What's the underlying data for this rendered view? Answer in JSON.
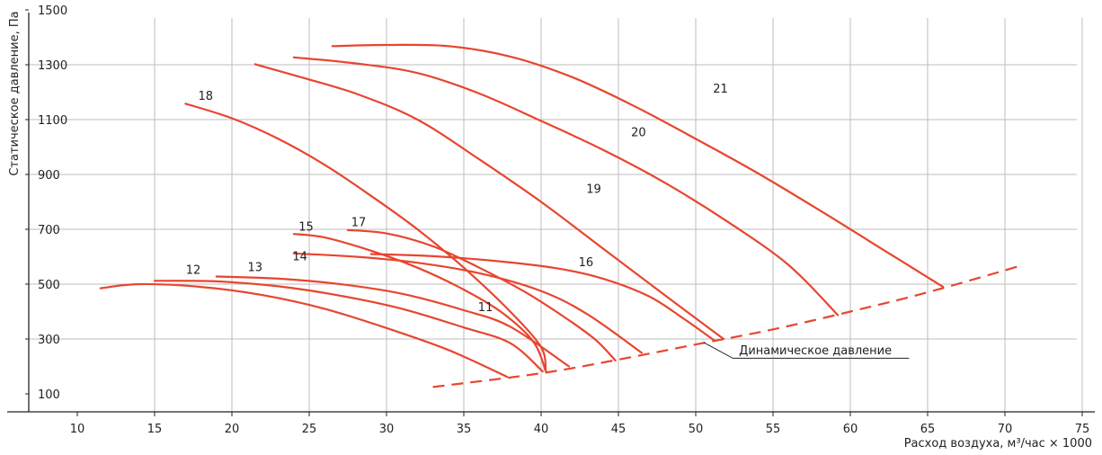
{
  "chart_data": {
    "type": "line",
    "title": "",
    "xlabel": "Расход воздуха, м³/час × 1000",
    "ylabel": "Статическое давление, Па",
    "xlim": [
      8,
      76
    ],
    "ylim": [
      50,
      1570
    ],
    "x_ticks": [
      10,
      15,
      20,
      25,
      30,
      35,
      40,
      45,
      50,
      55,
      60,
      65,
      70,
      75
    ],
    "y_ticks": [
      100,
      300,
      500,
      700,
      900,
      1100,
      1300,
      1500
    ],
    "grid": true,
    "colors": {
      "curve": "#e8452f",
      "grid": "#bdbdbd",
      "axis": "#222222"
    },
    "series": [
      {
        "name": "11",
        "label_at": [
          36.4,
          402
        ],
        "points": [
          [
            11.5,
            485
          ],
          [
            14,
            500
          ],
          [
            18,
            490
          ],
          [
            22,
            460
          ],
          [
            26,
            410
          ],
          [
            30,
            340
          ],
          [
            34,
            260
          ],
          [
            37.8,
            162
          ]
        ]
      },
      {
        "name": "12",
        "label_at": [
          17.5,
          537
        ],
        "points": [
          [
            15,
            512
          ],
          [
            19,
            510
          ],
          [
            23,
            492
          ],
          [
            27,
            458
          ],
          [
            31,
            410
          ],
          [
            35,
            342
          ],
          [
            38,
            285
          ],
          [
            40.1,
            182
          ]
        ]
      },
      {
        "name": "13",
        "label_at": [
          21.5,
          547
        ],
        "points": [
          [
            19,
            528
          ],
          [
            23,
            520
          ],
          [
            27,
            500
          ],
          [
            31,
            465
          ],
          [
            35,
            405
          ],
          [
            38,
            345
          ],
          [
            41.8,
            200
          ]
        ]
      },
      {
        "name": "14",
        "label_at": [
          24.4,
          587
        ],
        "points": [
          [
            24,
            612
          ],
          [
            28,
            600
          ],
          [
            32,
            578
          ],
          [
            36,
            540
          ],
          [
            40,
            475
          ],
          [
            43,
            390
          ],
          [
            46.5,
            250
          ]
        ]
      },
      {
        "name": "15",
        "label_at": [
          24.8,
          695
        ],
        "points": [
          [
            24,
            683
          ],
          [
            26,
            670
          ],
          [
            29,
            622
          ],
          [
            32,
            560
          ],
          [
            35,
            480
          ],
          [
            37.5,
            395
          ],
          [
            39.5,
            290
          ],
          [
            40.3,
            182
          ]
        ]
      },
      {
        "name": "16",
        "label_at": [
          42.9,
          565
        ],
        "points": [
          [
            29,
            610
          ],
          [
            33,
            602
          ],
          [
            37,
            585
          ],
          [
            41,
            558
          ],
          [
            44,
            520
          ],
          [
            47,
            455
          ],
          [
            49.2,
            375
          ],
          [
            51.2,
            295
          ]
        ]
      },
      {
        "name": "17",
        "label_at": [
          28.2,
          712
        ],
        "points": [
          [
            27.5,
            697
          ],
          [
            30,
            685
          ],
          [
            33,
            638
          ],
          [
            36,
            560
          ],
          [
            39,
            470
          ],
          [
            41.5,
            380
          ],
          [
            43.5,
            298
          ],
          [
            44.8,
            222
          ]
        ]
      },
      {
        "name": "18",
        "label_at": [
          18.3,
          1172
        ],
        "points": [
          [
            17,
            1158
          ],
          [
            20,
            1105
          ],
          [
            23,
            1030
          ],
          [
            26,
            935
          ],
          [
            29,
            822
          ],
          [
            32,
            700
          ],
          [
            35,
            560
          ],
          [
            38,
            400
          ],
          [
            40,
            270
          ],
          [
            40.3,
            182
          ]
        ]
      },
      {
        "name": "19",
        "label_at": [
          43.4,
          832
        ],
        "points": [
          [
            21.5,
            1302
          ],
          [
            24,
            1262
          ],
          [
            28,
            1195
          ],
          [
            32,
            1100
          ],
          [
            36,
            955
          ],
          [
            40,
            800
          ],
          [
            44,
            630
          ],
          [
            48,
            460
          ],
          [
            51.8,
            300
          ]
        ]
      },
      {
        "name": "20",
        "label_at": [
          46.3,
          1040
        ],
        "points": [
          [
            24,
            1327
          ],
          [
            28,
            1305
          ],
          [
            32,
            1270
          ],
          [
            36,
            1195
          ],
          [
            40,
            1095
          ],
          [
            44,
            990
          ],
          [
            48,
            870
          ],
          [
            52,
            730
          ],
          [
            56,
            570
          ],
          [
            59.2,
            387
          ]
        ]
      },
      {
        "name": "21",
        "label_at": [
          51.6,
          1198
        ],
        "points": [
          [
            26.5,
            1368
          ],
          [
            30,
            1372
          ],
          [
            34,
            1368
          ],
          [
            38,
            1330
          ],
          [
            42,
            1255
          ],
          [
            46,
            1150
          ],
          [
            50,
            1030
          ],
          [
            54,
            905
          ],
          [
            58,
            770
          ],
          [
            62,
            630
          ],
          [
            66,
            490
          ]
        ]
      }
    ],
    "dynamic_pressure": {
      "label": "Динамическое давление",
      "points": [
        [
          33,
          125
        ],
        [
          40,
          175
        ],
        [
          45,
          225
        ],
        [
          50,
          280
        ],
        [
          55,
          335
        ],
        [
          60,
          400
        ],
        [
          65,
          470
        ],
        [
          71.2,
          570
        ]
      ]
    }
  }
}
